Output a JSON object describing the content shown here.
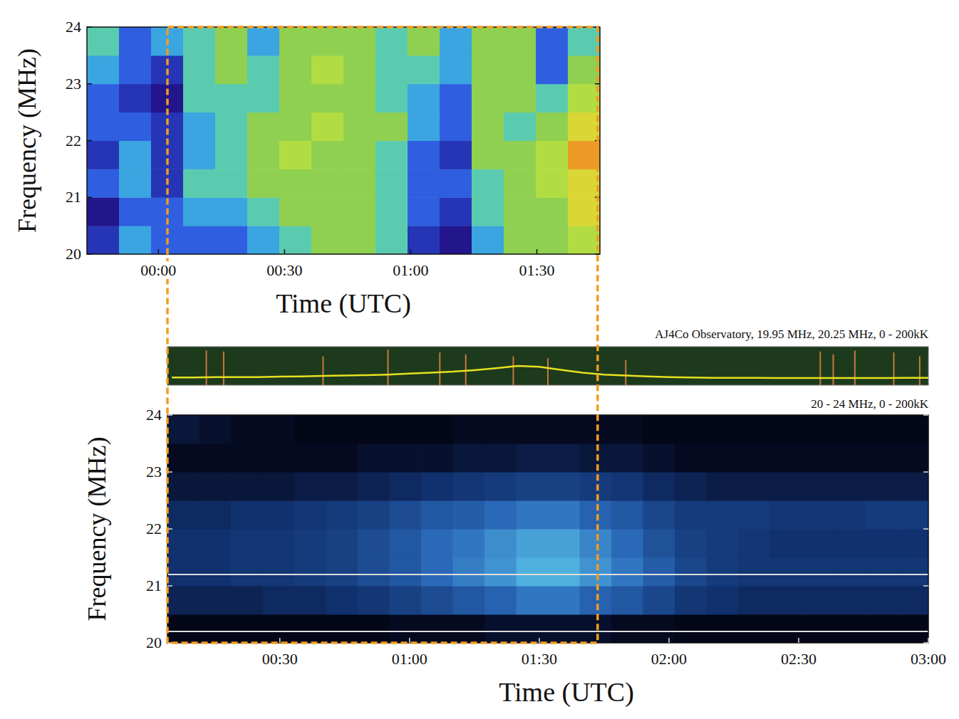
{
  "chart_data": [
    {
      "type": "heatmap",
      "x_label": "Time (UTC)",
      "y_label": "Frequency (MHz)",
      "xlim": [
        -17,
        105
      ],
      "ylim": [
        20,
        24
      ],
      "xticks": [
        {
          "value": 0,
          "label": "00:00"
        },
        {
          "value": 30,
          "label": "00:30"
        },
        {
          "value": 60,
          "label": "01:00"
        },
        {
          "value": 90,
          "label": "01:30"
        }
      ],
      "yticks": [
        20,
        21,
        22,
        23,
        24
      ],
      "x_bins": [
        -17,
        -9.375,
        -1.75,
        5.875,
        13.5,
        21.125,
        28.75,
        36.375,
        44,
        51.625,
        59.25,
        66.875,
        74.5,
        82.125,
        89.75,
        97.375,
        105
      ],
      "y_bins": [
        20,
        20.5,
        21,
        21.5,
        22,
        22.5,
        23,
        23.5,
        24
      ],
      "color_range": [
        0,
        10
      ],
      "cells": [
        [
          2,
          4,
          3,
          3,
          3,
          4,
          5,
          6,
          6,
          5,
          2,
          1,
          4,
          6,
          6,
          7
        ],
        [
          1,
          3,
          3,
          4,
          4,
          5,
          6,
          6,
          6,
          5,
          3,
          2,
          5,
          6,
          6,
          8
        ],
        [
          3,
          4,
          2,
          5,
          5,
          6,
          6,
          6,
          6,
          5,
          3,
          3,
          5,
          6,
          7,
          8
        ],
        [
          2,
          4,
          2,
          4,
          5,
          6,
          7,
          6,
          6,
          5,
          3,
          2,
          6,
          6,
          7,
          9
        ],
        [
          3,
          3,
          2,
          4,
          5,
          6,
          6,
          7,
          6,
          6,
          4,
          3,
          6,
          5,
          6,
          8
        ],
        [
          3,
          2,
          1,
          5,
          5,
          5,
          6,
          6,
          6,
          5,
          4,
          3,
          6,
          6,
          5,
          7
        ],
        [
          4,
          3,
          2,
          5,
          6,
          5,
          6,
          7,
          6,
          5,
          5,
          4,
          6,
          6,
          3,
          6
        ],
        [
          5,
          3,
          4,
          5,
          6,
          4,
          6,
          6,
          6,
          5,
          6,
          4,
          6,
          6,
          3,
          5
        ]
      ]
    },
    {
      "type": "line",
      "title": "AJ4Co Observatory, 19.95 MHz, 20.25 MHz, 0 - 200kK",
      "xlim": [
        4,
        180
      ],
      "ylim": [
        0,
        200
      ],
      "tick_labels": false,
      "color": "#e8e020",
      "x": [
        5,
        10,
        15,
        20,
        25,
        30,
        35,
        40,
        45,
        50,
        55,
        60,
        65,
        70,
        75,
        80,
        85,
        90,
        95,
        100,
        105,
        110,
        115,
        120,
        125,
        130,
        135,
        140,
        145,
        150,
        155,
        160,
        165,
        170,
        175,
        180
      ],
      "values": [
        40,
        40,
        42,
        42,
        42,
        44,
        45,
        48,
        50,
        52,
        55,
        60,
        65,
        70,
        78,
        88,
        100,
        95,
        80,
        65,
        55,
        50,
        45,
        42,
        40,
        38,
        38,
        38,
        37,
        37,
        37,
        37,
        37,
        37,
        38,
        38
      ],
      "spikes": {
        "x": [
          13,
          17,
          40,
          55,
          67,
          73,
          84,
          92,
          110,
          155,
          158,
          163,
          172,
          178
        ],
        "values": [
          180,
          175,
          150,
          185,
          170,
          160,
          150,
          140,
          130,
          175,
          160,
          180,
          170,
          150
        ]
      }
    },
    {
      "type": "heatmap",
      "title": "20 - 24 MHz, 0 - 200kK",
      "x_label": "Time (UTC)",
      "y_label": "Frequency (MHz)",
      "xlim": [
        4,
        180
      ],
      "ylim": [
        20,
        24
      ],
      "xticks": [
        {
          "value": 30,
          "label": "00:30"
        },
        {
          "value": 60,
          "label": "01:00"
        },
        {
          "value": 90,
          "label": "01:30"
        },
        {
          "value": 120,
          "label": "02:00"
        },
        {
          "value": 150,
          "label": "02:30"
        },
        {
          "value": 180,
          "label": "03:00"
        }
      ],
      "yticks": [
        20,
        21,
        22,
        23,
        24
      ],
      "x_bins": [
        4,
        11.33,
        18.67,
        26,
        33.33,
        40.67,
        48,
        55.33,
        62.67,
        70,
        77.33,
        84.67,
        92,
        99.33,
        106.67,
        114,
        121.33,
        128.67,
        136,
        143.33,
        150.67,
        158,
        165.33,
        172.67,
        180
      ],
      "y_bins": [
        20,
        20.5,
        21,
        21.5,
        22,
        22.5,
        23,
        23.5,
        24
      ],
      "color_range": [
        0,
        200
      ],
      "cells": [
        [
          15,
          15,
          15,
          15,
          15,
          15,
          15,
          20,
          20,
          20,
          25,
          25,
          25,
          25,
          20,
          20,
          15,
          15,
          15,
          15,
          15,
          15,
          15,
          15
        ],
        [
          40,
          40,
          40,
          45,
          45,
          50,
          55,
          65,
          75,
          85,
          95,
          110,
          110,
          95,
          85,
          70,
          55,
          50,
          45,
          45,
          45,
          45,
          45,
          45
        ],
        [
          50,
          50,
          55,
          55,
          60,
          65,
          75,
          85,
          100,
          115,
          130,
          150,
          150,
          130,
          110,
          90,
          70,
          60,
          55,
          55,
          55,
          55,
          55,
          55
        ],
        [
          50,
          50,
          55,
          55,
          60,
          65,
          75,
          85,
          100,
          110,
          125,
          140,
          140,
          120,
          100,
          80,
          65,
          60,
          55,
          50,
          50,
          50,
          50,
          50
        ],
        [
          45,
          45,
          50,
          50,
          55,
          60,
          65,
          75,
          85,
          90,
          100,
          110,
          110,
          95,
          85,
          70,
          60,
          60,
          60,
          55,
          55,
          55,
          60,
          60
        ],
        [
          30,
          30,
          30,
          30,
          35,
          35,
          40,
          45,
          50,
          55,
          60,
          65,
          65,
          60,
          55,
          45,
          40,
          35,
          35,
          35,
          35,
          35,
          35,
          35
        ],
        [
          20,
          20,
          20,
          20,
          20,
          20,
          25,
          25,
          25,
          30,
          30,
          35,
          35,
          30,
          30,
          25,
          20,
          20,
          20,
          20,
          20,
          20,
          20,
          20
        ],
        [
          30,
          25,
          20,
          20,
          15,
          15,
          15,
          15,
          15,
          20,
          20,
          20,
          20,
          20,
          20,
          15,
          15,
          15,
          15,
          15,
          15,
          15,
          15,
          15
        ]
      ],
      "rfi_lines": [
        20.2,
        21.2
      ],
      "highlight_window": [
        4,
        103.5
      ]
    }
  ]
}
